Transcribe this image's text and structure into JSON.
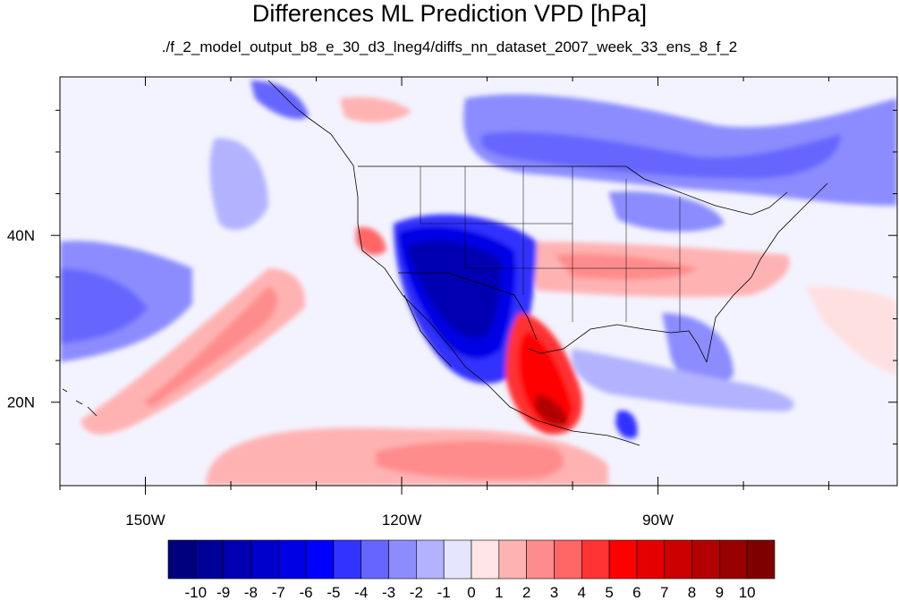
{
  "title": "Differences ML Prediction VPD [hPa]",
  "subtitle": "./f_2_model_output_b8_e_30_d3_lneg4/diffs_nn_dataset_2007_week_33_ens_8_f_2",
  "map": {
    "lon_range": [
      -160,
      -62
    ],
    "lat_range": [
      10,
      59
    ],
    "lon_ticks": [
      {
        "value": -150,
        "label": "150W"
      },
      {
        "value": -120,
        "label": "120W"
      },
      {
        "value": -90,
        "label": "90W"
      }
    ],
    "lat_ticks": [
      {
        "value": 40,
        "label": "40N"
      },
      {
        "value": 20,
        "label": "20N"
      }
    ]
  },
  "colorbar": {
    "labels": [
      "-10",
      "-9",
      "-8",
      "-7",
      "-6",
      "-5",
      "-4",
      "-3",
      "-2",
      "-1",
      "0",
      "1",
      "2",
      "3",
      "4",
      "5",
      "6",
      "7",
      "8",
      "9",
      "10"
    ],
    "colors": [
      "#00007f",
      "#000099",
      "#0000b2",
      "#0000cc",
      "#0000e5",
      "#0000ff",
      "#3333ff",
      "#6666ff",
      "#8c8cff",
      "#b2b2ff",
      "#e5e5ff",
      "#ffe5e5",
      "#ffb2b2",
      "#ff8c8c",
      "#ff6666",
      "#ff3333",
      "#ff0000",
      "#e50000",
      "#cc0000",
      "#b20000",
      "#990000",
      "#7f0000"
    ]
  }
}
